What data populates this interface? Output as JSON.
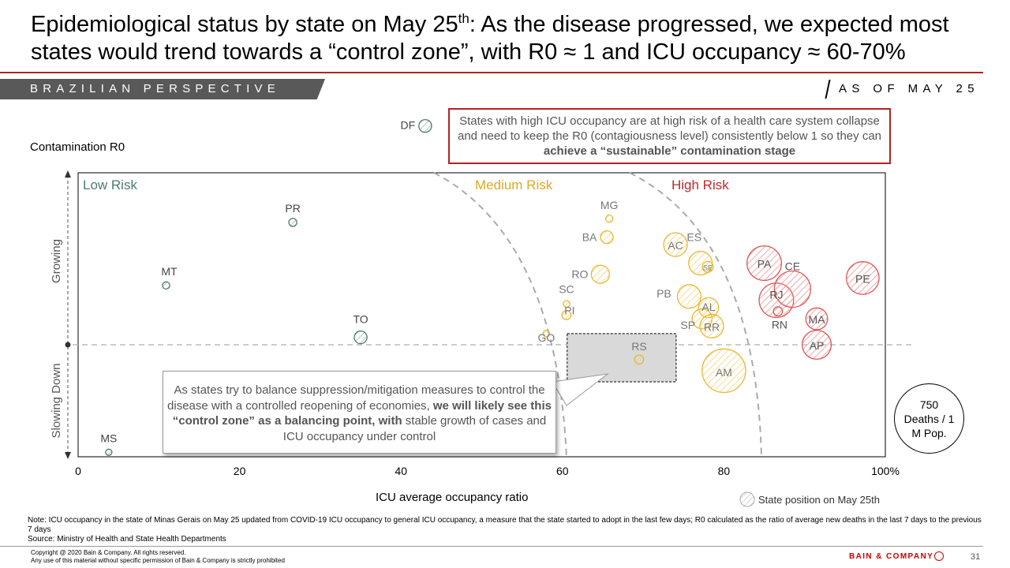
{
  "header": {
    "title_part1": "Epidemiological status by state on May 25",
    "title_sup": "th",
    "title_part2": ": As the disease progressed, we expected most states would trend towards a “control zone”, with R0 ≈ 1 and ICU occupancy ≈ 60-70%",
    "banner": "BRAZILIAN PERSPECTIVE",
    "as_of": "AS OF MAY 25"
  },
  "callouts": {
    "top_regular": "States with high ICU occupancy are at high risk of a health care system collapse and need to keep the R0 (contagiousness level) consistently below 1 so they can ",
    "top_bold": "achieve a “sustainable” contamination stage",
    "mid_regular1": "As states try to balance suppression/mitigation measures to control the disease with a controlled reopening of economies, ",
    "mid_bold": "we will likely see this “control zone” as a balancing point, with",
    "mid_regular2": " stable growth of cases and ICU occupancy under control"
  },
  "legend": {
    "bubble_size_label": "750 Deaths / 1 M Pop.",
    "marker_label": "State position on May 25th"
  },
  "footer": {
    "note": "Note: ICU occupancy in the state of Minas Gerais on May 25 updated from COVID-19 ICU occupancy to general ICU occupancy,  a measure that the state started to adopt in the last few days; R0 calculated as the ratio of average new deaths in the last 7 days to the previous 7 days",
    "source": "Source: Ministry of Health and State Health Departments",
    "copyright1": "Copyright @ 2020 Bain & Company. All rights reserved.",
    "copyright2": "Any use of this material without specific permission of Bain & Company is strictly prohibited",
    "logo": "BAIN & COMPANY",
    "page_number": "31"
  },
  "colors": {
    "low": "#4f7a70",
    "medium": "#e8b830",
    "high": "#e05555",
    "accent_red": "#b22222",
    "grey": "#999999"
  },
  "chart_data": {
    "type": "scatter",
    "xlabel": "ICU average occupancy ratio",
    "ylabel": "Contamination R0",
    "y_axis_top_label": "Growing",
    "y_axis_bottom_label": "Slowing Down",
    "xlim": [
      0,
      100
    ],
    "x_ticks": [
      "0",
      "20",
      "40",
      "60",
      "80",
      "100%"
    ],
    "zones": [
      "Low Risk",
      "Medium Risk",
      "High Risk"
    ],
    "control_zone": {
      "x_range": [
        60,
        73.5
      ],
      "y_range": [
        0.9,
        1.03
      ]
    },
    "r0_reference_line": 1.0,
    "bubble_reference_deaths_per_million": 750,
    "points": [
      {
        "state": "MS",
        "x": 3.8,
        "y": 0.71,
        "zone": "low",
        "size": 0.15
      },
      {
        "state": "MT",
        "x": 10.9,
        "y": 1.16,
        "zone": "low",
        "size": 0.2
      },
      {
        "state": "PR",
        "x": 26.6,
        "y": 1.33,
        "zone": "low",
        "size": 0.22
      },
      {
        "state": "TO",
        "x": 35.0,
        "y": 1.02,
        "zone": "low",
        "size": 0.35
      },
      {
        "state": "DF",
        "x": 43.0,
        "y": 1.59,
        "zone": "low",
        "size": 0.35
      },
      {
        "state": "GO",
        "x": 58.0,
        "y": 1.03,
        "zone": "medium",
        "size": 0.18
      },
      {
        "state": "PI",
        "x": 60.5,
        "y": 1.08,
        "zone": "medium",
        "size": 0.25
      },
      {
        "state": "SC",
        "x": 60.5,
        "y": 1.11,
        "zone": "medium",
        "size": 0.18
      },
      {
        "state": "RS",
        "x": 69.5,
        "y": 0.96,
        "zone": "medium",
        "size": 0.25
      },
      {
        "state": "RO",
        "x": 64.7,
        "y": 1.19,
        "zone": "medium",
        "size": 0.5
      },
      {
        "state": "BA",
        "x": 65.5,
        "y": 1.29,
        "zone": "medium",
        "size": 0.35
      },
      {
        "state": "MG",
        "x": 65.8,
        "y": 1.34,
        "zone": "medium",
        "size": 0.2
      },
      {
        "state": "AC",
        "x": 74.0,
        "y": 1.27,
        "zone": "medium",
        "size": 0.65
      },
      {
        "state": "ES",
        "x": 77.1,
        "y": 1.22,
        "zone": "medium",
        "size": 0.65
      },
      {
        "state": "SE",
        "x": 78.0,
        "y": 1.21,
        "zone": "medium",
        "size": 0.3
      },
      {
        "state": "PB",
        "x": 75.7,
        "y": 1.13,
        "zone": "medium",
        "size": 0.65
      },
      {
        "state": "AL",
        "x": 78.1,
        "y": 1.1,
        "zone": "medium",
        "size": 0.55
      },
      {
        "state": "SP",
        "x": 77.3,
        "y": 1.07,
        "zone": "medium",
        "size": 0.55
      },
      {
        "state": "RR",
        "x": 78.5,
        "y": 1.05,
        "zone": "medium",
        "size": 0.65
      },
      {
        "state": "AM",
        "x": 80.0,
        "y": 0.93,
        "zone": "medium",
        "size": 1.2
      },
      {
        "state": "PA",
        "x": 85.0,
        "y": 1.22,
        "zone": "high",
        "size": 0.95
      },
      {
        "state": "RJ",
        "x": 86.5,
        "y": 1.12,
        "zone": "high",
        "size": 0.95
      },
      {
        "state": "RN",
        "x": 86.7,
        "y": 1.09,
        "zone": "high",
        "size": 0.25
      },
      {
        "state": "CE",
        "x": 88.5,
        "y": 1.15,
        "zone": "high",
        "size": 1.0
      },
      {
        "state": "MA",
        "x": 91.5,
        "y": 1.07,
        "zone": "high",
        "size": 0.6
      },
      {
        "state": "AP",
        "x": 91.5,
        "y": 1.0,
        "zone": "high",
        "size": 0.8
      },
      {
        "state": "PE",
        "x": 97.2,
        "y": 1.18,
        "zone": "high",
        "size": 0.9
      }
    ]
  }
}
